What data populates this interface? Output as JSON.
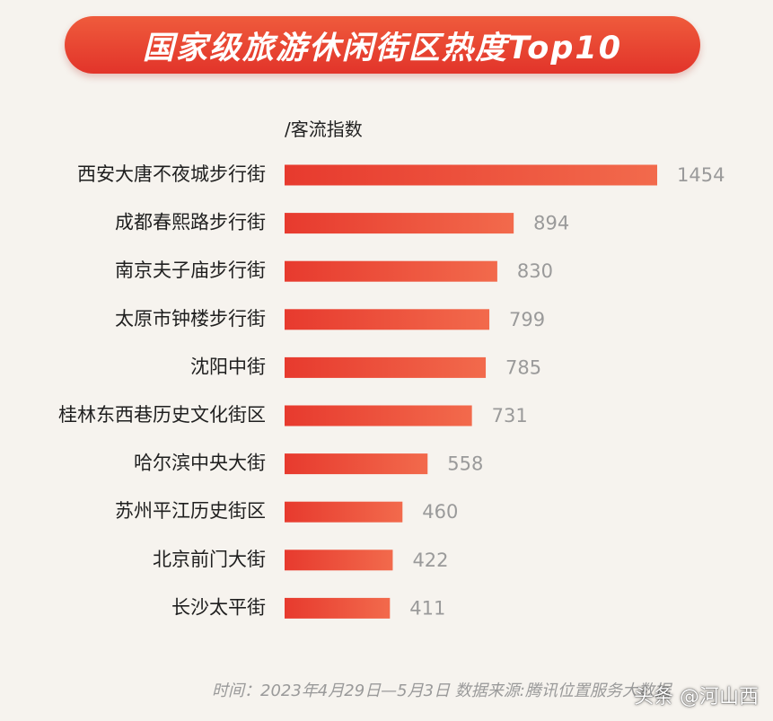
{
  "chart_data": {
    "type": "bar",
    "orientation": "horizontal",
    "title": "国家级旅游休闲街区热度Top10",
    "unit_label": "/客流指数",
    "categories": [
      "西安大唐不夜城步行街",
      "成都春熙路步行街",
      "南京夫子庙步行街",
      "太原市钟楼步行街",
      "沈阳中街",
      "桂林东西巷历史文化街区",
      "哈尔滨中央大街",
      "苏州平江历史街区",
      "北京前门大街",
      "长沙太平街"
    ],
    "values": [
      1454,
      894,
      830,
      799,
      785,
      731,
      558,
      460,
      422,
      411
    ],
    "bar_color": "#e73a2e",
    "bar_color_light": "#f26a4c",
    "grid": false,
    "legend": "none"
  },
  "footer": {
    "text": "时间：2023年4月29日—5月3日  数据来源:腾讯位置服务大数据"
  },
  "watermark": {
    "text": "头条 @河山西"
  }
}
